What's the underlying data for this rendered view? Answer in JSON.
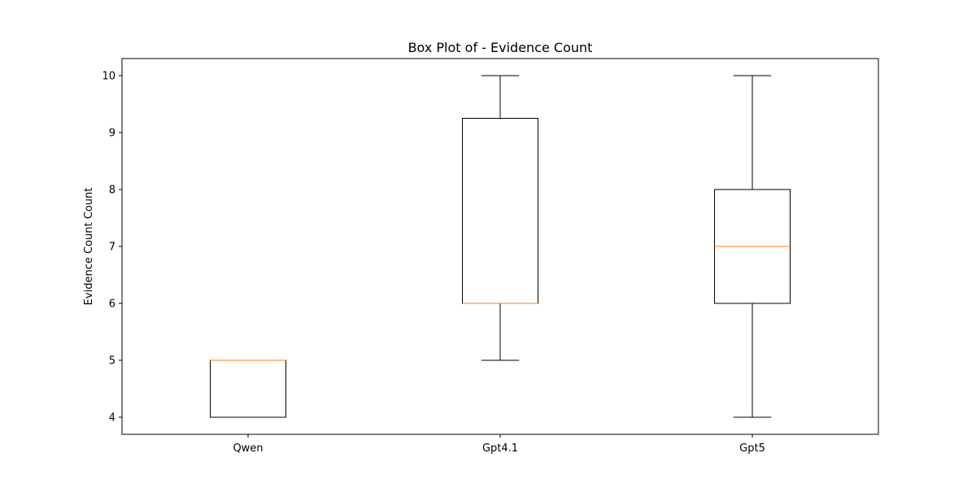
{
  "chart_data": {
    "type": "box",
    "title": "Box Plot of - Evidence Count",
    "xlabel": "",
    "ylabel": "Evidence Count Count",
    "categories": [
      "Qwen",
      "Gpt4.1",
      "Gpt5"
    ],
    "ylim": [
      3.7,
      10.3
    ],
    "yticks": [
      4,
      5,
      6,
      7,
      8,
      9,
      10
    ],
    "boxes": [
      {
        "category": "Qwen",
        "whisker_low": 4,
        "q1": 4,
        "median": 5,
        "q3": 5,
        "whisker_high": 5
      },
      {
        "category": "Gpt4.1",
        "whisker_low": 5,
        "q1": 6,
        "median": 6,
        "q3": 9.25,
        "whisker_high": 10
      },
      {
        "category": "Gpt5",
        "whisker_low": 4,
        "q1": 6,
        "median": 7,
        "q3": 8,
        "whisker_high": 10
      }
    ],
    "grid": false,
    "colors": {
      "box": "#000000",
      "median": "#ff7f0e"
    }
  }
}
